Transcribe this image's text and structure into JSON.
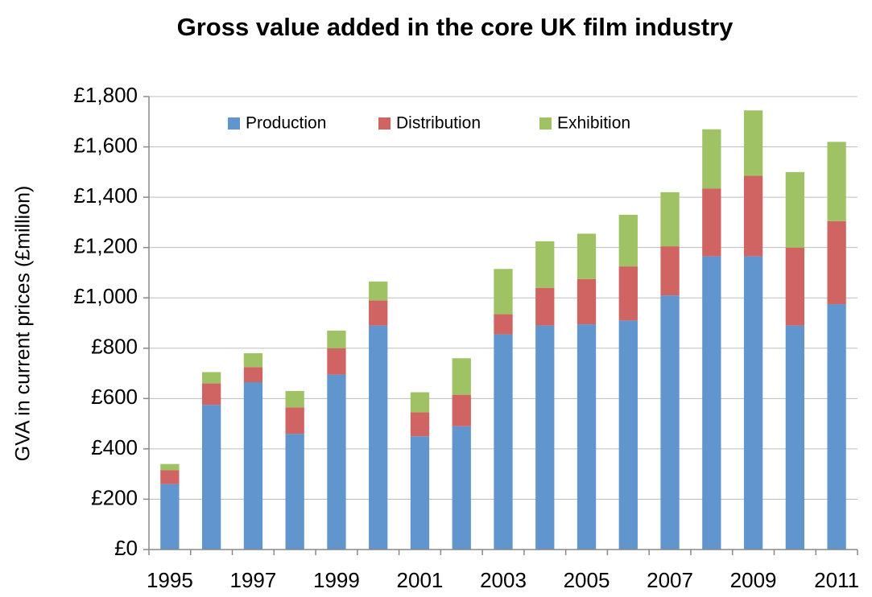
{
  "chart_data": {
    "type": "stacked_bar",
    "title": "Gross value added in the core UK film industry",
    "y_label": "GVA in current prices (£million)",
    "categories": [
      "1995",
      null,
      "1997",
      null,
      "1999",
      null,
      "2001",
      null,
      "2003",
      null,
      "2005",
      null,
      "2007",
      null,
      "2009",
      null,
      "2011"
    ],
    "series": [
      {
        "name": "Production",
        "color": "#6096cd",
        "values": [
          260,
          575,
          665,
          460,
          695,
          890,
          450,
          490,
          855,
          890,
          895,
          910,
          1010,
          1165,
          1165,
          890,
          975
        ]
      },
      {
        "name": "Distribution",
        "color": "#cf6462",
        "values": [
          55,
          85,
          60,
          105,
          105,
          100,
          95,
          125,
          80,
          150,
          180,
          215,
          195,
          270,
          320,
          310,
          330
        ]
      },
      {
        "name": "Exhibition",
        "color": "#9fc364",
        "values": [
          25,
          45,
          55,
          65,
          70,
          75,
          80,
          145,
          180,
          185,
          180,
          205,
          215,
          235,
          260,
          300,
          315
        ]
      }
    ],
    "ylim": [
      0,
      1800
    ],
    "yticks": [
      {
        "value": 0,
        "label": "£0"
      },
      {
        "value": 200,
        "label": "£200"
      },
      {
        "value": 400,
        "label": "£400"
      },
      {
        "value": 600,
        "label": "£600"
      },
      {
        "value": 800,
        "label": "£800"
      },
      {
        "value": 1000,
        "label": "£1,000"
      },
      {
        "value": 1200,
        "label": "£1,200"
      },
      {
        "value": 1400,
        "label": "£1,400"
      },
      {
        "value": 1600,
        "label": "£1,600"
      },
      {
        "value": 1800,
        "label": "£1,800"
      }
    ],
    "grid": true,
    "legend": "top"
  }
}
